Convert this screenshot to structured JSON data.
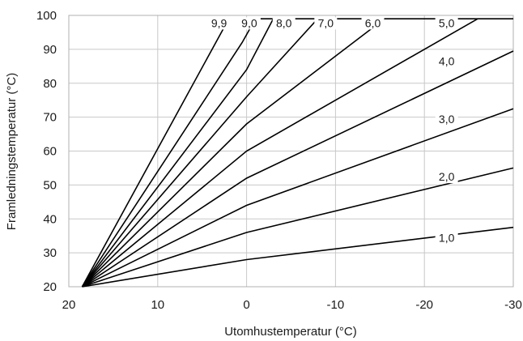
{
  "chart_data": {
    "type": "line",
    "title": "",
    "xlabel": "Utomhustemperatur (°C)",
    "ylabel": "Framledningstemperatur (°C)",
    "xlim": [
      20,
      -30
    ],
    "ylim": [
      20,
      100
    ],
    "x_reversed": true,
    "grid": true,
    "x_ticks": [
      20,
      10,
      0,
      -10,
      -20,
      -30
    ],
    "x_tick_labels": [
      "20",
      "10",
      "0",
      "-10",
      "-20",
      "-30"
    ],
    "y_ticks": [
      20,
      30,
      40,
      50,
      60,
      70,
      80,
      90,
      100
    ],
    "y_tick_labels": [
      "20",
      "30",
      "40",
      "50",
      "60",
      "70",
      "80",
      "90",
      "100"
    ],
    "series": [
      {
        "name": "1,0",
        "x": [
          18.5,
          0,
          -30
        ],
        "y": [
          20,
          28,
          37.5
        ]
      },
      {
        "name": "2,0",
        "x": [
          18.5,
          0,
          -30
        ],
        "y": [
          20,
          36,
          55
        ]
      },
      {
        "name": "3,0",
        "x": [
          18.5,
          0,
          -30
        ],
        "y": [
          20,
          44,
          72.5
        ]
      },
      {
        "name": "4,0",
        "x": [
          18.5,
          0,
          -30
        ],
        "y": [
          20,
          52,
          89.5
        ]
      },
      {
        "name": "5,0",
        "x": [
          18.5,
          0,
          -26
        ],
        "y": [
          20,
          60,
          99
        ]
      },
      {
        "name": "6,0",
        "x": [
          18.5,
          0,
          -15.5
        ],
        "y": [
          20,
          68,
          99
        ]
      },
      {
        "name": "7,0",
        "x": [
          18.5,
          0,
          -8
        ],
        "y": [
          20,
          76,
          99
        ]
      },
      {
        "name": "8,0",
        "x": [
          18.5,
          0,
          -3
        ],
        "y": [
          20,
          84,
          99
        ]
      },
      {
        "name": "9,0",
        "x": [
          18.5,
          0.5,
          -1
        ],
        "y": [
          20,
          92,
          99
        ]
      },
      {
        "name": "9,9",
        "x": [
          18.5,
          2
        ],
        "y": [
          20,
          99
        ]
      }
    ],
    "flat_top": {
      "x": [
        0,
        -30
      ],
      "y": [
        99,
        99
      ]
    },
    "curve_labels": [
      {
        "text": "1,0",
        "x": -22.5,
        "y": 33.5
      },
      {
        "text": "2,0",
        "x": -22.5,
        "y": 51.5
      },
      {
        "text": "3,0",
        "x": -22.5,
        "y": 68.5
      },
      {
        "text": "4,0",
        "x": -22.5,
        "y": 85.5
      },
      {
        "text": "5,0",
        "x": -22.5,
        "y": 96.8
      },
      {
        "text": "6,0",
        "x": -14.2,
        "y": 96.8
      },
      {
        "text": "7,0",
        "x": -8.9,
        "y": 96.8
      },
      {
        "text": "8,0",
        "x": -4.2,
        "y": 96.8
      },
      {
        "text": "9,0",
        "x": -0.3,
        "y": 96.8
      },
      {
        "text": "9,9",
        "x": 3.1,
        "y": 96.8
      }
    ]
  }
}
